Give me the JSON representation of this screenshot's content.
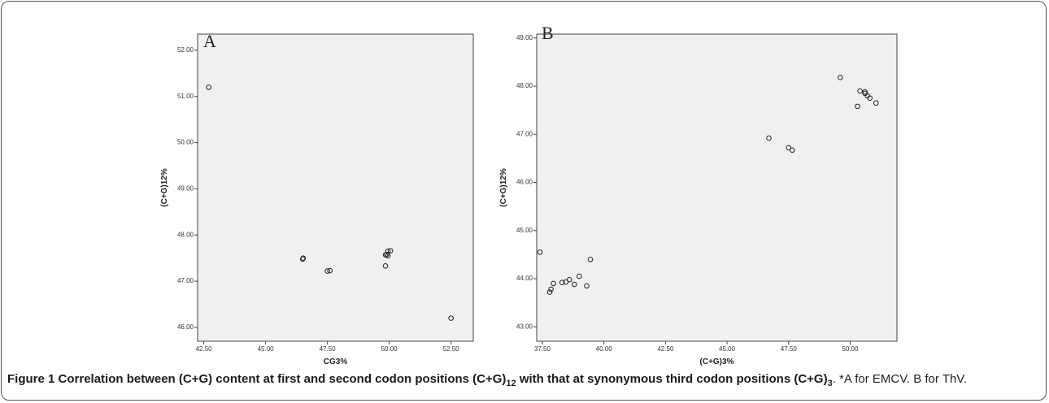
{
  "chart_data": [
    {
      "type": "scatter",
      "panel": "A",
      "x_label": "CG3%",
      "y_label": "(C+G)12%",
      "xlim": [
        42.25,
        53.4
      ],
      "ylim": [
        45.7,
        52.35
      ],
      "xticks": [
        {
          "value": 42.5,
          "label": "42.50"
        },
        {
          "value": 45,
          "label": "45.00"
        },
        {
          "value": 47.5,
          "label": "47.50"
        },
        {
          "value": 50,
          "label": "50.00"
        },
        {
          "value": 52.5,
          "label": "52.50"
        }
      ],
      "yticks": [
        {
          "value": 46,
          "label": "46.00"
        },
        {
          "value": 47,
          "label": "47.00"
        },
        {
          "value": 48,
          "label": "48.00"
        },
        {
          "value": 49,
          "label": "49.00"
        },
        {
          "value": 50,
          "label": "50.00"
        },
        {
          "value": 51,
          "label": "51.00"
        },
        {
          "value": 52,
          "label": "52.00"
        }
      ],
      "series": [
        {
          "color": "#222222",
          "x": [
            42.7,
            46.5,
            46.52,
            47.5,
            47.6,
            49.85,
            49.9,
            49.95,
            50.05,
            49.95,
            49.85,
            52.5
          ],
          "values": [
            51.2,
            47.48,
            47.5,
            47.22,
            47.23,
            47.33,
            47.58,
            47.65,
            47.66,
            47.55,
            47.57,
            46.2
          ]
        }
      ]
    },
    {
      "type": "scatter",
      "panel": "B",
      "x_label": "(C+G)3%",
      "y_label": "(C+G)12%",
      "xlim": [
        37.27,
        51.9
      ],
      "ylim": [
        42.7,
        49.08
      ],
      "xticks": [
        {
          "value": 37.5,
          "label": "37.50"
        },
        {
          "value": 40,
          "label": "40.00"
        },
        {
          "value": 42.5,
          "label": "42.50"
        },
        {
          "value": 45,
          "label": "45.00"
        },
        {
          "value": 47.5,
          "label": "47.50"
        },
        {
          "value": 50,
          "label": "50.00"
        }
      ],
      "yticks": [
        {
          "value": 43,
          "label": "43.00"
        },
        {
          "value": 44,
          "label": "44.00"
        },
        {
          "value": 45,
          "label": "45.00"
        },
        {
          "value": 46,
          "label": "46.00"
        },
        {
          "value": 47,
          "label": "47.00"
        },
        {
          "value": 48,
          "label": "48.00"
        },
        {
          "value": 49,
          "label": "49.00"
        }
      ],
      "series": [
        {
          "color": "#222222",
          "x": [
            37.4,
            37.8,
            37.85,
            37.95,
            38.3,
            38.45,
            38.6,
            38.8,
            39.0,
            39.3,
            39.45,
            46.7,
            47.5,
            47.65,
            49.6,
            50.3,
            50.4,
            50.6,
            50.7,
            50.8,
            51.05,
            50.6
          ],
          "values": [
            44.55,
            43.72,
            43.78,
            43.9,
            43.92,
            43.93,
            43.98,
            43.88,
            44.05,
            43.85,
            44.4,
            46.92,
            46.72,
            46.67,
            48.18,
            47.58,
            47.9,
            47.85,
            47.8,
            47.75,
            47.65,
            47.88
          ]
        }
      ]
    }
  ],
  "caption": {
    "label": "Figure 1",
    "title": [
      "Correlation between (C+G) content at first and second codon positions (C+G)",
      "12",
      " with that at synonymous third codon positions (C+G)",
      "3"
    ],
    "note": ". *A for EMCV. B for ThV."
  }
}
